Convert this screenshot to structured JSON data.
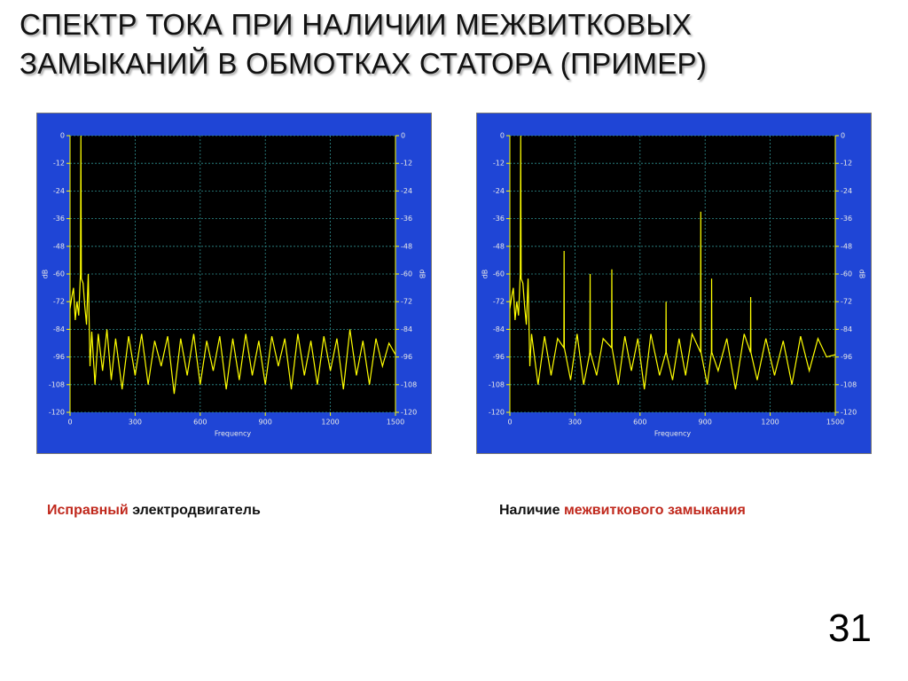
{
  "title": [
    "СПЕКТР ТОКА ПРИ НАЛИЧИИ МЕЖВИТКОВЫХ",
    "ЗАМЫКАНИЙ В ОБМОТКАХ СТАТОРА (ПРИМЕР)"
  ],
  "captions": [
    [
      "Исправный",
      "электродвигатель"
    ],
    [
      "Наличие",
      "межвиткового замыкания"
    ]
  ],
  "page_number": "31",
  "chart_data": [
    {
      "type": "line",
      "xlabel": "Frequency",
      "ylabel": "dB",
      "y2label": "dB",
      "xlim": [
        0,
        1500
      ],
      "xticks": [
        0,
        300,
        600,
        900,
        1200,
        1500
      ],
      "ylim": [
        -120,
        0
      ],
      "yticks": [
        0,
        -12,
        -24,
        -36,
        -48,
        -60,
        -72,
        -84,
        -96,
        -108,
        -120
      ],
      "y2lim": [
        -120,
        0
      ],
      "y2ticks": [
        0,
        -12,
        -24,
        -36,
        -48,
        -60,
        -72,
        -84,
        -96,
        -108,
        -120
      ],
      "grid": true,
      "series": [
        {
          "color": "#ffff00",
          "x": [
            0,
            8,
            16,
            24,
            32,
            40,
            48,
            50,
            52,
            60,
            68,
            76,
            84,
            92,
            100,
            115,
            130,
            150,
            170,
            190,
            210,
            240,
            270,
            300,
            330,
            360,
            390,
            420,
            450,
            480,
            510,
            540,
            570,
            600,
            630,
            660,
            690,
            720,
            750,
            780,
            810,
            840,
            870,
            900,
            930,
            960,
            990,
            1020,
            1050,
            1080,
            1110,
            1140,
            1170,
            1200,
            1230,
            1260,
            1290,
            1320,
            1350,
            1380,
            1410,
            1440,
            1470,
            1500
          ],
          "values": [
            -75,
            -70,
            -66,
            -80,
            -72,
            -78,
            -60,
            0,
            -62,
            -64,
            -74,
            -82,
            -60,
            -100,
            -85,
            -108,
            -86,
            -102,
            -84,
            -106,
            -88,
            -110,
            -87,
            -104,
            -86,
            -108,
            -89,
            -100,
            -87,
            -112,
            -88,
            -104,
            -86,
            -108,
            -89,
            -102,
            -87,
            -110,
            -88,
            -106,
            -86,
            -104,
            -89,
            -108,
            -87,
            -100,
            -88,
            -110,
            -86,
            -104,
            -89,
            -108,
            -87,
            -102,
            -88,
            -110,
            -84,
            -104,
            -89,
            -108,
            -88,
            -100,
            -90,
            -95
          ]
        }
      ]
    },
    {
      "type": "line",
      "xlabel": "Frequency",
      "ylabel": "dB",
      "y2label": "dB",
      "xlim": [
        0,
        1500
      ],
      "xticks": [
        0,
        300,
        600,
        900,
        1200,
        1500
      ],
      "ylim": [
        -120,
        0
      ],
      "yticks": [
        0,
        -12,
        -24,
        -36,
        -48,
        -60,
        -72,
        -84,
        -96,
        -108,
        -120
      ],
      "y2lim": [
        -120,
        0
      ],
      "y2ticks": [
        0,
        -12,
        -24,
        -36,
        -48,
        -60,
        -72,
        -84,
        -96,
        -108,
        -120
      ],
      "grid": true,
      "series": [
        {
          "color": "#ffff00",
          "x": [
            0,
            8,
            16,
            24,
            32,
            40,
            48,
            50,
            52,
            60,
            68,
            76,
            84,
            92,
            100,
            130,
            160,
            190,
            220,
            249,
            250,
            251,
            280,
            310,
            340,
            369,
            370,
            371,
            400,
            430,
            469,
            470,
            471,
            500,
            530,
            560,
            590,
            620,
            650,
            690,
            719,
            720,
            721,
            750,
            780,
            810,
            840,
            879,
            880,
            881,
            910,
            929,
            930,
            931,
            960,
            1000,
            1040,
            1080,
            1109,
            1110,
            1111,
            1140,
            1180,
            1220,
            1260,
            1300,
            1340,
            1380,
            1420,
            1460,
            1500
          ],
          "values": [
            -75,
            -70,
            -66,
            -80,
            -72,
            -78,
            -60,
            0,
            -62,
            -64,
            -74,
            -82,
            -62,
            -100,
            -86,
            -108,
            -87,
            -104,
            -88,
            -92,
            -50,
            -92,
            -106,
            -86,
            -108,
            -94,
            -60,
            -94,
            -104,
            -88,
            -92,
            -58,
            -92,
            -108,
            -87,
            -102,
            -88,
            -110,
            -86,
            -104,
            -94,
            -72,
            -94,
            -106,
            -88,
            -104,
            -86,
            -94,
            -33,
            -94,
            -108,
            -94,
            -62,
            -94,
            -102,
            -88,
            -110,
            -86,
            -94,
            -70,
            -94,
            -106,
            -88,
            -104,
            -89,
            -108,
            -87,
            -102,
            -88,
            -96,
            -95
          ]
        }
      ]
    }
  ]
}
